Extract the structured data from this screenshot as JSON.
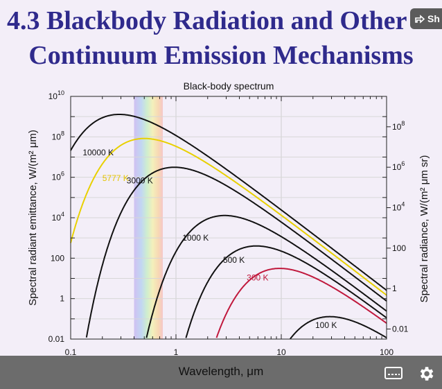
{
  "slide": {
    "title_line1": "4.3  Blackbody Radiation and Other",
    "title_line2": "Continuum Emission Mechanisms"
  },
  "share": {
    "label": "Sh",
    "icon": "share-icon"
  },
  "chart_data": {
    "type": "line",
    "title": "Black-body spectrum",
    "xlabel": "Wavelength, μm",
    "ylabel_left": "Spectral radiant emittance, W/(m² μm)",
    "ylabel_right": "Spectral radiance, W/(m² μm sr)",
    "x_scale": "log",
    "y_scale": "log",
    "xlim": [
      0.1,
      100
    ],
    "ylim": [
      0.01,
      10000000000
    ],
    "x_ticks": [
      "0.1",
      "1",
      "10",
      "100"
    ],
    "y_ticks_left": [
      "0.01",
      "1",
      "100",
      "10^4",
      "10^6",
      "10^8",
      "10^10"
    ],
    "y_ticks_right": [
      "0.01",
      "1",
      "100",
      "10^4",
      "10^6",
      "10^8"
    ],
    "grid": true,
    "visible_band": [
      0.4,
      0.75
    ],
    "series": [
      {
        "name": "10000 K",
        "temp": 10000,
        "color": "#111111"
      },
      {
        "name": "5777 K",
        "temp": 5777,
        "color": "#e8d000"
      },
      {
        "name": "3000 K",
        "temp": 3000,
        "color": "#111111"
      },
      {
        "name": "1000 K",
        "temp": 1000,
        "color": "#111111"
      },
      {
        "name": "500 K",
        "temp": 500,
        "color": "#111111"
      },
      {
        "name": "300 K",
        "temp": 300,
        "color": "#c0183c"
      },
      {
        "name": "100 K",
        "temp": 100,
        "color": "#111111"
      }
    ]
  },
  "player": {
    "captions_icon": "captions-icon",
    "settings_icon": "gear-icon"
  }
}
